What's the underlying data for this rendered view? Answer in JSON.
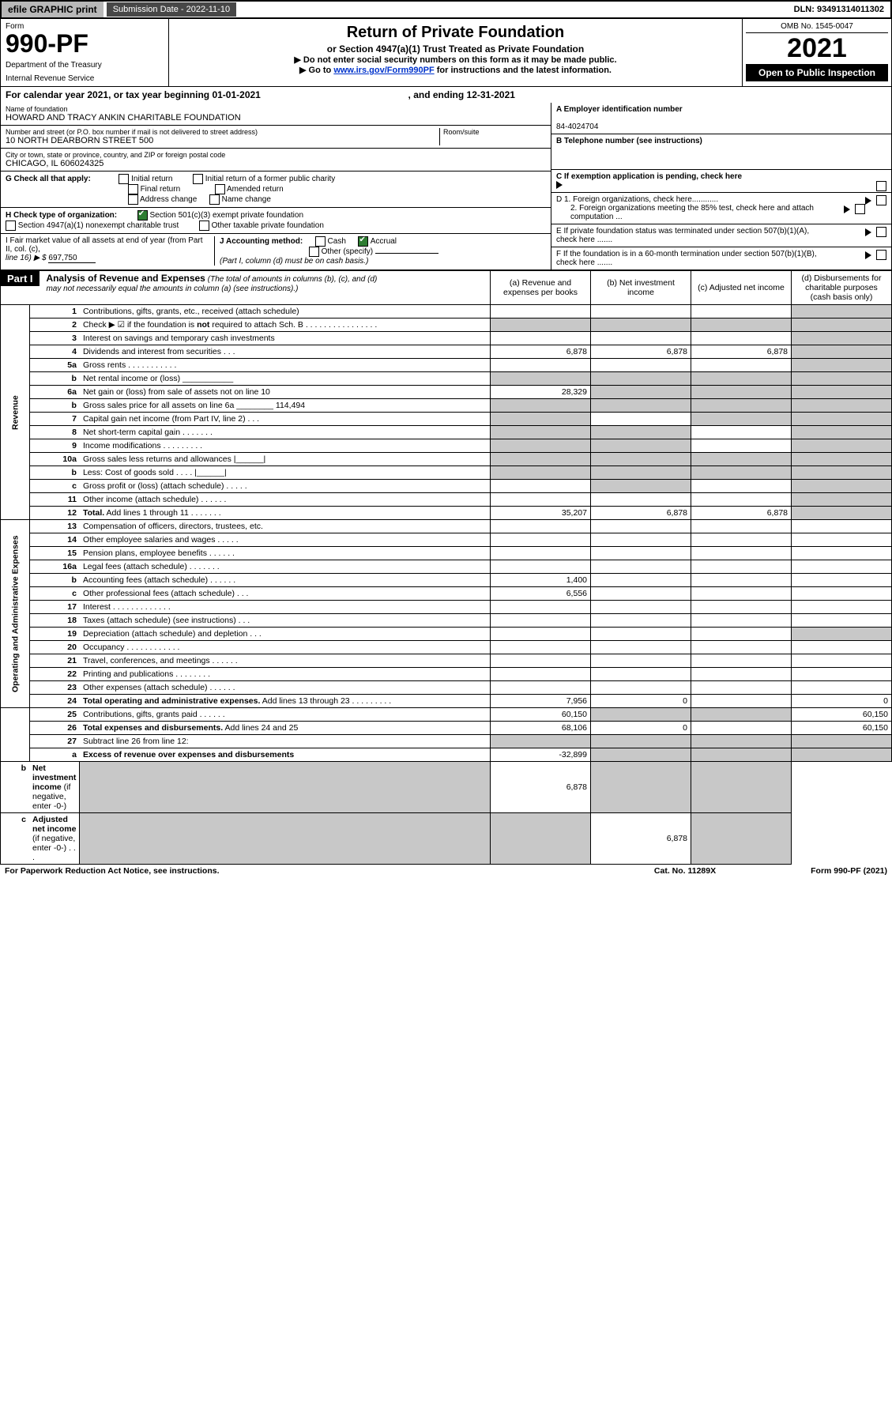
{
  "top": {
    "efile": "efile GRAPHIC print",
    "submission": "Submission Date - 2022-11-10",
    "dln": "DLN: 93491314011302"
  },
  "header": {
    "formWord": "Form",
    "formNum": "990-PF",
    "dept1": "Department of the Treasury",
    "dept2": "Internal Revenue Service",
    "title": "Return of Private Foundation",
    "sub": "or Section 4947(a)(1) Trust Treated as Private Foundation",
    "note1": "▶ Do not enter social security numbers on this form as it may be made public.",
    "note2_pre": "▶ Go to ",
    "note2_link": "www.irs.gov/Form990PF",
    "note2_post": " for instructions and the latest information.",
    "omb": "OMB No. 1545-0047",
    "year": "2021",
    "open": "Open to Public Inspection"
  },
  "calendar": {
    "pre": "For calendar year 2021, or tax year beginning ",
    "begin": "01-01-2021",
    "mid": " , and ending ",
    "end": "12-31-2021"
  },
  "info": {
    "nameLabel": "Name of foundation",
    "name": "HOWARD AND TRACY ANKIN CHARITABLE FOUNDATION",
    "addrLabel": "Number and street (or P.O. box number if mail is not delivered to street address)",
    "addr": "10 NORTH DEARBORN STREET 500",
    "roomLabel": "Room/suite",
    "cityLabel": "City or town, state or province, country, and ZIP or foreign postal code",
    "city": "CHICAGO, IL  606024325",
    "einLabel": "A Employer identification number",
    "ein": "84-4024704",
    "telLabel": "B Telephone number (see instructions)",
    "cLabel": "C If exemption application is pending, check here",
    "d1": "D 1. Foreign organizations, check here............",
    "d2": "2. Foreign organizations meeting the 85% test, check here and attach computation ...",
    "eLabel": "E  If private foundation status was terminated under section 507(b)(1)(A), check here .......",
    "fLabel": "F  If the foundation is in a 60-month termination under section 507(b)(1)(B), check here .......",
    "gLabel": "G Check all that apply:",
    "g_opts": [
      "Initial return",
      "Initial return of a former public charity",
      "Final return",
      "Amended return",
      "Address change",
      "Name change"
    ],
    "hLabel": "H Check type of organization:",
    "h_opt1": "Section 501(c)(3) exempt private foundation",
    "h_opt2": "Section 4947(a)(1) nonexempt charitable trust",
    "h_opt3": "Other taxable private foundation",
    "iLabel": "I Fair market value of all assets at end of year (from Part II, col. (c),",
    "iLine": "line 16) ▶ $",
    "iVal": "697,750",
    "jLabel": "J Accounting method:",
    "j_cash": "Cash",
    "j_accrual": "Accrual",
    "j_other": "Other (specify)",
    "j_note": "(Part I, column (d) must be on cash basis.)"
  },
  "part1": {
    "label": "Part I",
    "title": "Analysis of Revenue and Expenses",
    "titleNote": " (The total of amounts in columns (b), (c), and (d) may not necessarily equal the amounts in column (a) (see instructions).)",
    "colA": "(a)   Revenue and expenses per books",
    "colB": "(b)   Net investment income",
    "colC": "(c)   Adjusted net income",
    "colD": "(d)   Disbursements for charitable purposes (cash basis only)"
  },
  "sections": {
    "revenue": "Revenue",
    "opexp": "Operating and Administrative Expenses"
  },
  "rows": [
    {
      "n": "1",
      "d": "Contributions, gifts, grants, etc., received (attach schedule)",
      "a": "",
      "b": "",
      "c": "",
      "dd": "",
      "shadeD": true
    },
    {
      "n": "2",
      "d": "Check ▶ ☑ if the foundation is <b>not</b> required to attach Sch. B     .   .   .   .   .   .   .   .   .   .   .   .   .   .   .   .",
      "a": "",
      "b": "",
      "c": "",
      "dd": "",
      "shadeA": true,
      "shadeB": true,
      "shadeC": true,
      "shadeD": true,
      "html": true
    },
    {
      "n": "3",
      "d": "Interest on savings and temporary cash investments",
      "a": "",
      "b": "",
      "c": "",
      "dd": "",
      "shadeD": true
    },
    {
      "n": "4",
      "d": "Dividends and interest from securities     .   .   .",
      "a": "6,878",
      "b": "6,878",
      "c": "6,878",
      "dd": "",
      "shadeD": true
    },
    {
      "n": "5a",
      "d": "Gross rents     .   .   .   .   .   .   .   .   .   .   .",
      "a": "",
      "b": "",
      "c": "",
      "dd": "",
      "shadeD": true
    },
    {
      "n": "b",
      "d": "Net rental income or (loss)  ___________",
      "a": "",
      "b": "",
      "c": "",
      "dd": "",
      "shadeA": true,
      "shadeB": true,
      "shadeC": true,
      "shadeD": true
    },
    {
      "n": "6a",
      "d": "Net gain or (loss) from sale of assets not on line 10",
      "a": "28,329",
      "b": "",
      "c": "",
      "dd": "",
      "shadeB": true,
      "shadeC": true,
      "shadeD": true
    },
    {
      "n": "b",
      "d": "Gross sales price for all assets on line 6a ________ 114,494",
      "a": "",
      "b": "",
      "c": "",
      "dd": "",
      "shadeA": true,
      "shadeB": true,
      "shadeC": true,
      "shadeD": true
    },
    {
      "n": "7",
      "d": "Capital gain net income (from Part IV, line 2)   .   .   .",
      "a": "",
      "b": "",
      "c": "",
      "dd": "",
      "shadeA": true,
      "shadeC": true,
      "shadeD": true
    },
    {
      "n": "8",
      "d": "Net short-term capital gain   .   .   .   .   .   .   .",
      "a": "",
      "b": "",
      "c": "",
      "dd": "",
      "shadeA": true,
      "shadeB": true,
      "shadeD": true
    },
    {
      "n": "9",
      "d": "Income modifications   .   .   .   .   .   .   .   .   .",
      "a": "",
      "b": "",
      "c": "",
      "dd": "",
      "shadeA": true,
      "shadeB": true,
      "shadeD": true
    },
    {
      "n": "10a",
      "d": "Gross sales less returns and allowances  |______|",
      "a": "",
      "b": "",
      "c": "",
      "dd": "",
      "shadeA": true,
      "shadeB": true,
      "shadeC": true,
      "shadeD": true
    },
    {
      "n": "b",
      "d": "Less: Cost of goods sold     .   .   .   .   |______|",
      "a": "",
      "b": "",
      "c": "",
      "dd": "",
      "shadeA": true,
      "shadeB": true,
      "shadeC": true,
      "shadeD": true
    },
    {
      "n": "c",
      "d": "Gross profit or (loss) (attach schedule)   .   .   .   .   .",
      "a": "",
      "b": "",
      "c": "",
      "dd": "",
      "shadeB": true,
      "shadeD": true
    },
    {
      "n": "11",
      "d": "Other income (attach schedule)   .   .   .   .   .   .",
      "a": "",
      "b": "",
      "c": "",
      "dd": "",
      "shadeD": true
    },
    {
      "n": "12",
      "d": "<b>Total.</b> Add lines 1 through 11   .   .   .   .   .   .   .",
      "a": "35,207",
      "b": "6,878",
      "c": "6,878",
      "dd": "",
      "shadeD": true,
      "html": true
    },
    {
      "n": "13",
      "d": "Compensation of officers, directors, trustees, etc.",
      "a": "",
      "b": "",
      "c": "",
      "dd": ""
    },
    {
      "n": "14",
      "d": "Other employee salaries and wages   .   .   .   .   .",
      "a": "",
      "b": "",
      "c": "",
      "dd": ""
    },
    {
      "n": "15",
      "d": "Pension plans, employee benefits   .   .   .   .   .   .",
      "a": "",
      "b": "",
      "c": "",
      "dd": ""
    },
    {
      "n": "16a",
      "d": "Legal fees (attach schedule)   .   .   .   .   .   .   .",
      "a": "",
      "b": "",
      "c": "",
      "dd": ""
    },
    {
      "n": "b",
      "d": "Accounting fees (attach schedule)   .   .   .   .   .   .",
      "a": "1,400",
      "b": "",
      "c": "",
      "dd": ""
    },
    {
      "n": "c",
      "d": "Other professional fees (attach schedule)   .   .   .",
      "a": "6,556",
      "b": "",
      "c": "",
      "dd": ""
    },
    {
      "n": "17",
      "d": "Interest   .   .   .   .   .   .   .   .   .   .   .   .   .",
      "a": "",
      "b": "",
      "c": "",
      "dd": ""
    },
    {
      "n": "18",
      "d": "Taxes (attach schedule) (see instructions)   .   .   .",
      "a": "",
      "b": "",
      "c": "",
      "dd": ""
    },
    {
      "n": "19",
      "d": "Depreciation (attach schedule) and depletion   .   .   .",
      "a": "",
      "b": "",
      "c": "",
      "dd": "",
      "shadeD": true
    },
    {
      "n": "20",
      "d": "Occupancy   .   .   .   .   .   .   .   .   .   .   .   .",
      "a": "",
      "b": "",
      "c": "",
      "dd": ""
    },
    {
      "n": "21",
      "d": "Travel, conferences, and meetings   .   .   .   .   .   .",
      "a": "",
      "b": "",
      "c": "",
      "dd": ""
    },
    {
      "n": "22",
      "d": "Printing and publications   .   .   .   .   .   .   .   .",
      "a": "",
      "b": "",
      "c": "",
      "dd": ""
    },
    {
      "n": "23",
      "d": "Other expenses (attach schedule)   .   .   .   .   .   .",
      "a": "",
      "b": "",
      "c": "",
      "dd": ""
    },
    {
      "n": "24",
      "d": "<b>Total operating and administrative expenses.</b> Add lines 13 through 23   .   .   .   .   .   .   .   .   .",
      "a": "7,956",
      "b": "0",
      "c": "",
      "dd": "0",
      "html": true
    },
    {
      "n": "25",
      "d": "Contributions, gifts, grants paid   .   .   .   .   .   .",
      "a": "60,150",
      "b": "",
      "c": "",
      "dd": "60,150",
      "shadeB": true,
      "shadeC": true
    },
    {
      "n": "26",
      "d": "<b>Total expenses and disbursements.</b> Add lines 24 and 25",
      "a": "68,106",
      "b": "0",
      "c": "",
      "dd": "60,150",
      "html": true
    },
    {
      "n": "27",
      "d": "Subtract line 26 from line 12:",
      "a": "",
      "b": "",
      "c": "",
      "dd": "",
      "shadeA": true,
      "shadeB": true,
      "shadeC": true,
      "shadeD": true
    },
    {
      "n": "a",
      "d": "<b>Excess of revenue over expenses and disbursements</b>",
      "a": "-32,899",
      "b": "",
      "c": "",
      "dd": "",
      "shadeB": true,
      "shadeC": true,
      "shadeD": true,
      "html": true
    },
    {
      "n": "b",
      "d": "<b>Net investment income</b> (if negative, enter -0-)",
      "a": "",
      "b": "6,878",
      "c": "",
      "dd": "",
      "shadeA": true,
      "shadeC": true,
      "shadeD": true,
      "html": true
    },
    {
      "n": "c",
      "d": "<b>Adjusted net income</b> (if negative, enter -0-)   .   .   .",
      "a": "",
      "b": "",
      "c": "6,878",
      "dd": "",
      "shadeA": true,
      "shadeB": true,
      "shadeD": true,
      "html": true
    }
  ],
  "footer": {
    "left": "For Paperwork Reduction Act Notice, see instructions.",
    "mid": "Cat. No. 11289X",
    "right": "Form 990-PF (2021)"
  }
}
